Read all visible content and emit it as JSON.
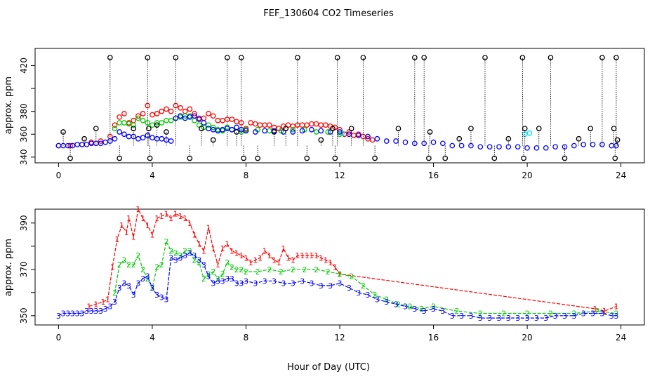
{
  "figure": {
    "title": "FEF_130604  CO2 Timeseries",
    "xlabel": "Hour of Day (UTC)"
  },
  "colors": {
    "red": "#ff0000",
    "green": "#00cc00",
    "blue": "#0000ff",
    "cyan": "#00e5ee",
    "black": "#000000"
  },
  "chart_data": [
    {
      "type": "scatter",
      "ylabel": "approx. ppm",
      "xlim": [
        -1,
        25
      ],
      "ylim": [
        335,
        435
      ],
      "x_ticks": [
        0,
        4,
        8,
        12,
        16,
        20,
        24
      ],
      "y_ticks": [
        340,
        360,
        380,
        400,
        420
      ],
      "y_tick_labels_shown": [
        "340",
        "360",
        "380",
        "420"
      ],
      "markers": "open circles with vertical dotted drop lines",
      "series": [
        {
          "color": "red",
          "x": [
            0,
            0.5,
            1,
            1.4,
            1.8,
            2.2,
            2.4,
            2.6,
            2.8,
            3.0,
            3.2,
            3.4,
            3.6,
            3.8,
            4.0,
            4.2,
            4.4,
            4.6,
            4.8,
            5.0,
            5.2,
            5.4,
            5.6,
            5.8,
            6.0,
            6.2,
            6.4,
            6.6,
            6.8,
            7.0,
            7.2,
            7.4,
            7.6,
            7.8,
            8.0,
            8.2,
            8.4,
            8.6,
            8.8,
            9.0,
            9.2,
            9.4,
            9.6,
            9.8,
            10.0,
            10.2,
            10.4,
            10.6,
            10.8,
            11.0,
            11.2,
            11.4,
            11.6,
            11.8,
            12.0,
            12.2,
            12.4,
            12.6,
            12.8,
            13.0,
            13.2,
            13.4
          ],
          "y": [
            350,
            350,
            351,
            353,
            354,
            358,
            368,
            375,
            378,
            370,
            372,
            376,
            378,
            385,
            377,
            378,
            380,
            382,
            380,
            385,
            383,
            380,
            382,
            378,
            374,
            374,
            378,
            376,
            372,
            372,
            373,
            373,
            371,
            370,
            365,
            370,
            369,
            368,
            368,
            368,
            366,
            365,
            367,
            368,
            367,
            368,
            368,
            368,
            369,
            369,
            368,
            368,
            367,
            366,
            364,
            360,
            362,
            359,
            360,
            358,
            356,
            355
          ]
        },
        {
          "color": "green",
          "x": [
            2.4,
            2.6,
            2.8,
            3.0,
            3.2,
            3.4,
            3.6,
            3.8,
            4.0,
            4.2,
            4.4,
            4.6,
            4.8,
            5.0,
            5.2,
            5.4,
            5.6,
            5.8,
            6.0,
            6.2,
            6.4,
            6.6,
            6.8,
            7.0,
            7.2,
            7.4,
            7.6,
            7.8,
            8.0,
            8.5,
            9.0,
            9.5,
            10.0,
            10.5,
            11.0,
            11.5,
            12.0
          ],
          "y": [
            365,
            370,
            370,
            369,
            368,
            374,
            372,
            370,
            368,
            370,
            370,
            372,
            372,
            374,
            375,
            376,
            376,
            372,
            368,
            366,
            368,
            366,
            364,
            363,
            366,
            364,
            366,
            362,
            364,
            364,
            363,
            363,
            364,
            364,
            362,
            362,
            360
          ]
        },
        {
          "color": "cyan",
          "x": [
            19.9,
            20.1,
            12.1
          ],
          "y": [
            360,
            361,
            361
          ]
        },
        {
          "color": "blue",
          "x": [
            0,
            0.2,
            0.4,
            0.6,
            0.8,
            1.0,
            1.2,
            1.4,
            1.6,
            1.8,
            2.0,
            2.2,
            2.4,
            2.6,
            2.8,
            3.0,
            3.2,
            3.4,
            3.6,
            3.8,
            4.0,
            4.2,
            4.4,
            4.6,
            4.8,
            5.0,
            5.2,
            5.4,
            5.6,
            5.8,
            6.0,
            6.2,
            6.4,
            6.6,
            6.8,
            7.0,
            7.2,
            7.4,
            7.6,
            7.8,
            8.0,
            8.4,
            8.8,
            9.2,
            9.6,
            10.0,
            10.4,
            10.8,
            11.2,
            11.6,
            12.0,
            12.4,
            12.8,
            13.2,
            13.6,
            14.0,
            14.4,
            14.8,
            15.2,
            15.6,
            16.0,
            16.4,
            16.8,
            17.2,
            17.6,
            18.0,
            18.4,
            18.8,
            19.2,
            19.6,
            20.0,
            20.4,
            20.8,
            21.2,
            21.6,
            22.0,
            22.4,
            22.8,
            23.2,
            23.6,
            23.8
          ],
          "y": [
            350,
            350,
            350,
            350,
            351,
            351,
            351,
            352,
            352,
            352,
            353,
            354,
            356,
            362,
            360,
            358,
            358,
            356,
            357,
            359,
            357,
            356,
            356,
            355,
            354,
            374,
            376,
            374,
            375,
            376,
            373,
            370,
            365,
            364,
            363,
            364,
            365,
            364,
            366,
            364,
            363,
            362,
            363,
            363,
            362,
            362,
            363,
            364,
            363,
            362,
            362,
            360,
            359,
            358,
            356,
            354,
            354,
            353,
            352,
            352,
            353,
            352,
            350,
            350,
            350,
            349,
            349,
            349,
            349,
            349,
            348,
            348,
            348,
            349,
            349,
            350,
            351,
            351,
            351,
            350,
            350
          ]
        },
        {
          "color": "black",
          "x": [
            0.2,
            0.5,
            1.1,
            1.6,
            2.2,
            2.6,
            3.2,
            3.8,
            3.85,
            3.9,
            4.2,
            4.6,
            5.0,
            5.6,
            6.1,
            6.6,
            7.2,
            7.6,
            7.8,
            7.9,
            8.5,
            9.2,
            9.7,
            10.2,
            10.6,
            11.2,
            11.7,
            11.8,
            11.9,
            12.5,
            13.0,
            13.5,
            14.5,
            15.2,
            15.6,
            15.8,
            15.85,
            16.5,
            17.1,
            17.6,
            18.2,
            18.6,
            19.2,
            19.8,
            19.85,
            19.9,
            20.5,
            21.0,
            21.6,
            22.2,
            22.7,
            23.2,
            23.7,
            23.75,
            23.8,
            23.85
          ],
          "y": [
            362,
            339,
            356,
            365,
            427,
            339,
            365,
            427,
            365,
            339,
            368,
            362,
            427,
            339,
            365,
            355,
            427,
            362,
            427,
            339,
            339,
            362,
            365,
            427,
            339,
            355,
            365,
            339,
            427,
            365,
            427,
            339,
            365,
            427,
            427,
            339,
            362,
            339,
            356,
            365,
            427,
            339,
            356,
            427,
            339,
            365,
            365,
            427,
            339,
            356,
            365,
            427,
            365,
            339,
            427,
            355
          ]
        }
      ]
    },
    {
      "type": "line",
      "ylabel": "approx. ppm",
      "xlim": [
        -1,
        25
      ],
      "ylim": [
        346,
        396
      ],
      "x_ticks": [
        0,
        4,
        8,
        12,
        16,
        20,
        24
      ],
      "y_ticks": [
        350,
        360,
        370,
        380,
        390
      ],
      "y_tick_labels_shown": [
        "350",
        "370",
        "390"
      ],
      "markers": "digit labels on dashed lines",
      "series": [
        {
          "name": "1",
          "color": "red",
          "x": [
            1.3,
            1.6,
            1.9,
            2.1,
            2.3,
            2.5,
            2.7,
            2.9,
            3.0,
            3.2,
            3.4,
            3.6,
            3.8,
            4.0,
            4.2,
            4.4,
            4.6,
            4.8,
            5.0,
            5.2,
            5.4,
            5.6,
            5.8,
            6.0,
            6.2,
            6.4,
            6.6,
            6.8,
            7.0,
            7.2,
            7.4,
            7.6,
            7.8,
            8.0,
            8.2,
            8.4,
            8.6,
            8.8,
            9.0,
            9.2,
            9.4,
            9.6,
            9.8,
            10.0,
            10.2,
            10.4,
            10.6,
            10.8,
            11.0,
            11.2,
            11.4,
            11.6,
            11.8,
            12.0,
            22.9,
            23.3,
            23.8
          ],
          "y": [
            354,
            355,
            356,
            357,
            371,
            383,
            389,
            386,
            392,
            384,
            396,
            392,
            389,
            385,
            392,
            393,
            394,
            392,
            394,
            393,
            392,
            390,
            385,
            381,
            378,
            388,
            379,
            372,
            379,
            381,
            378,
            377,
            376,
            375,
            373,
            374,
            375,
            378,
            376,
            374,
            373,
            379,
            375,
            374,
            376,
            376,
            376,
            376,
            376,
            375,
            374,
            373,
            371,
            368,
            353,
            352,
            354
          ]
        },
        {
          "name": "2",
          "color": "green",
          "x": [
            2.4,
            2.6,
            2.8,
            3.0,
            3.2,
            3.4,
            3.6,
            3.8,
            4.0,
            4.2,
            4.4,
            4.6,
            4.8,
            5.0,
            5.2,
            5.4,
            5.6,
            5.8,
            6.0,
            6.2,
            6.4,
            6.6,
            6.8,
            7.0,
            7.2,
            7.4,
            7.6,
            7.8,
            8.0,
            8.5,
            9.0,
            9.5,
            10.0,
            10.5,
            11.0,
            11.5,
            12.0,
            12.5,
            13.0,
            13.5,
            14.0,
            14.5,
            15.0,
            15.5,
            16.0,
            17.0,
            18.0,
            19.0,
            20.0,
            21.0,
            22.0,
            23.0,
            23.8
          ],
          "y": [
            360,
            372,
            374,
            372,
            372,
            376,
            370,
            366,
            362,
            371,
            372,
            382,
            378,
            377,
            376,
            378,
            378,
            374,
            373,
            366,
            368,
            369,
            366,
            368,
            373,
            371,
            370,
            370,
            369,
            369,
            370,
            369,
            370,
            370,
            370,
            369,
            368,
            367,
            363,
            359,
            357,
            355,
            354,
            353,
            354,
            352,
            351,
            351,
            351,
            351,
            351,
            352,
            351
          ]
        },
        {
          "name": "3",
          "color": "blue",
          "x": [
            0,
            0.2,
            0.4,
            0.6,
            0.8,
            1.0,
            1.2,
            1.4,
            1.6,
            1.8,
            2.0,
            2.2,
            2.4,
            2.6,
            2.8,
            3.0,
            3.2,
            3.4,
            3.6,
            3.8,
            4.0,
            4.2,
            4.4,
            4.6,
            4.8,
            5.0,
            5.2,
            5.4,
            5.6,
            5.8,
            6.0,
            6.2,
            6.4,
            6.6,
            6.8,
            7.0,
            7.2,
            7.4,
            7.6,
            7.8,
            8.0,
            8.4,
            8.8,
            9.2,
            9.6,
            10.0,
            10.4,
            10.8,
            11.2,
            11.6,
            12.0,
            12.4,
            12.8,
            13.2,
            13.6,
            14.0,
            14.4,
            14.8,
            15.2,
            15.6,
            16.0,
            16.4,
            16.8,
            17.2,
            17.6,
            18.0,
            18.4,
            18.8,
            19.2,
            19.6,
            20.0,
            20.4,
            20.8,
            21.2,
            21.6,
            22.0,
            22.4,
            22.8,
            23.2,
            23.6,
            23.8
          ],
          "y": [
            350,
            351,
            351,
            351,
            351,
            351,
            352,
            352,
            352,
            352,
            353,
            354,
            356,
            362,
            364,
            363,
            359,
            364,
            366,
            367,
            362,
            359,
            358,
            357,
            375,
            374,
            375,
            376,
            377,
            376,
            374,
            372,
            367,
            364,
            365,
            365,
            366,
            366,
            364,
            364,
            365,
            364,
            365,
            365,
            364,
            364,
            365,
            364,
            363,
            363,
            364,
            362,
            360,
            359,
            357,
            356,
            355,
            354,
            353,
            352,
            353,
            352,
            350,
            350,
            350,
            349,
            349,
            349,
            349,
            349,
            349,
            349,
            349,
            350,
            350,
            350,
            351,
            351,
            351,
            350,
            350
          ]
        }
      ]
    }
  ]
}
